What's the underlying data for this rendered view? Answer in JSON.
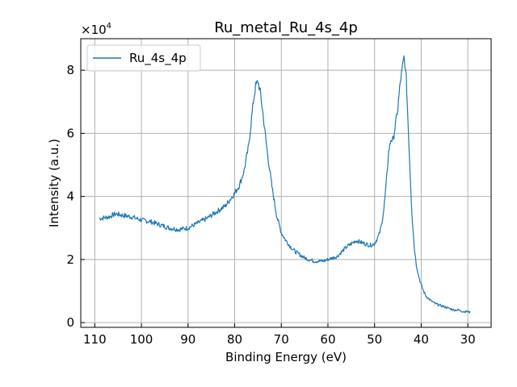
{
  "chart_data": {
    "type": "line",
    "title": "Ru_metal_Ru_4s_4p",
    "xlabel": "Binding Energy (eV)",
    "ylabel": "Intensity (a.u.)",
    "y_multiplier_label": "×10",
    "y_multiplier_exponent": "4",
    "x_reversed": true,
    "xlim": [
      113,
      25
    ],
    "ylim": [
      -0.15,
      9.0
    ],
    "y_scale_note": "values in units of 1e4",
    "x_ticks": [
      110,
      100,
      90,
      80,
      70,
      60,
      50,
      40,
      30
    ],
    "y_ticks": [
      0,
      2,
      4,
      6,
      8
    ],
    "grid": true,
    "legend_position": "top-left",
    "series": [
      {
        "name": "Ru_4s_4p",
        "color": "#1f77b4",
        "x": [
          109.0,
          107.0,
          105.5,
          104.0,
          102.0,
          100.0,
          98.0,
          96.0,
          94.0,
          92.0,
          90.0,
          88.0,
          86.0,
          84.0,
          82.0,
          80.0,
          79.0,
          78.0,
          77.0,
          76.0,
          75.5,
          75.0,
          74.5,
          74.0,
          73.0,
          72.0,
          71.0,
          70.0,
          69.0,
          68.0,
          67.0,
          66.0,
          65.0,
          64.0,
          63.0,
          62.0,
          61.0,
          60.0,
          59.0,
          58.0,
          57.0,
          56.0,
          55.0,
          54.0,
          53.0,
          52.0,
          51.0,
          50.0,
          49.0,
          48.5,
          48.0,
          47.5,
          47.0,
          46.5,
          46.0,
          45.5,
          45.0,
          44.5,
          44.0,
          43.7,
          43.5,
          43.2,
          43.0,
          42.5,
          42.0,
          41.5,
          41.0,
          40.5,
          40.0,
          39.5,
          39.0,
          38.0,
          37.0,
          36.0,
          35.0,
          34.0,
          33.0,
          32.0,
          31.0,
          30.0,
          29.5
        ],
        "values": [
          3.3,
          3.35,
          3.45,
          3.4,
          3.35,
          3.25,
          3.2,
          3.1,
          3.0,
          2.95,
          3.0,
          3.15,
          3.3,
          3.5,
          3.7,
          4.1,
          4.35,
          4.8,
          5.6,
          7.0,
          7.5,
          7.65,
          7.3,
          6.7,
          5.4,
          4.3,
          3.4,
          2.85,
          2.6,
          2.4,
          2.25,
          2.15,
          2.05,
          2.0,
          1.95,
          1.95,
          1.95,
          2.0,
          2.05,
          2.1,
          2.25,
          2.4,
          2.5,
          2.6,
          2.55,
          2.5,
          2.45,
          2.5,
          2.8,
          3.1,
          3.6,
          4.4,
          5.4,
          5.8,
          5.8,
          6.3,
          6.8,
          7.6,
          8.1,
          8.4,
          8.2,
          7.7,
          7.0,
          5.2,
          3.5,
          2.4,
          1.8,
          1.45,
          1.2,
          1.0,
          0.85,
          0.7,
          0.6,
          0.55,
          0.5,
          0.45,
          0.4,
          0.4,
          0.35,
          0.35,
          0.33
        ]
      }
    ]
  }
}
